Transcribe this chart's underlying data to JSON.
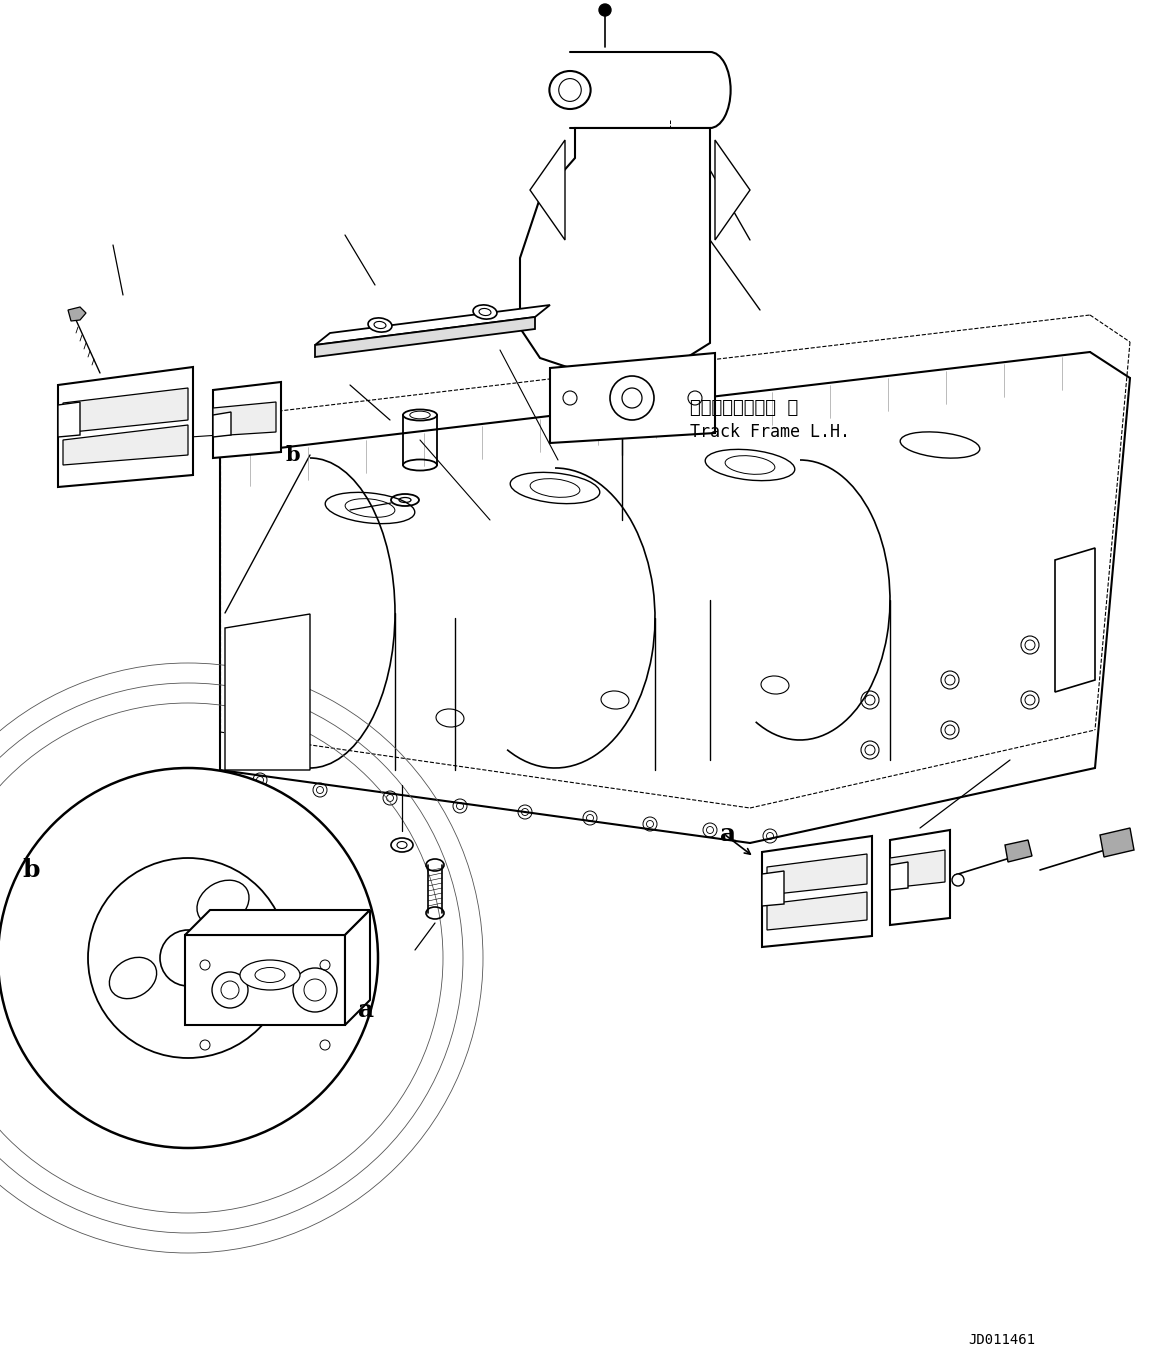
{
  "fig_width": 11.63,
  "fig_height": 13.72,
  "dpi": 100,
  "bg": "#ffffff",
  "lc": "#000000",
  "track_frame_jp": "トラックフレーム  左",
  "track_frame_en": "Track Frame L.H.",
  "diagram_id": "JD011461",
  "label_a": "a",
  "label_b": "b"
}
